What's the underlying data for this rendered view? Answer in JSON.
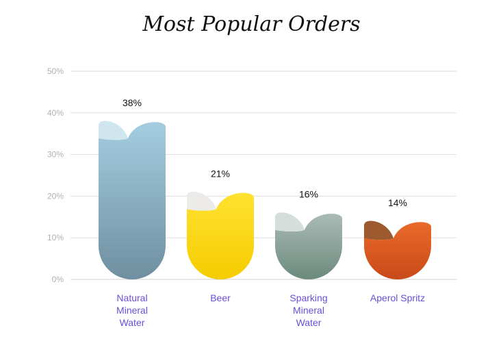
{
  "chart_data": {
    "type": "bar",
    "title": "Most Popular Orders",
    "categories": [
      "Natural Mineral Water",
      "Beer",
      "Sparking Mineral Water",
      "Aperol Spritz"
    ],
    "category_lines": [
      [
        "Natural",
        "Mineral",
        "Water"
      ],
      [
        "Beer"
      ],
      [
        "Sparking",
        "Mineral",
        "Water"
      ],
      [
        "Aperol Spritz"
      ]
    ],
    "values": [
      38,
      21,
      16,
      14
    ],
    "value_labels": [
      "38%",
      "21%",
      "16%",
      "14%"
    ],
    "ylim": [
      0,
      50
    ],
    "y_ticks": [
      "0%",
      "10%",
      "20%",
      "30%",
      "40%",
      "50%"
    ],
    "grid": true,
    "colors": [
      {
        "top": "#a4cde0",
        "bottom": "#6f8fa0",
        "cap": "#cfe6ee"
      },
      {
        "top": "#ffe230",
        "bottom": "#f5cc00",
        "cap": "#ecebea"
      },
      {
        "top": "#aabbb6",
        "bottom": "#6c8a7d",
        "cap": "#d6dedb"
      },
      {
        "top": "#ea6a2a",
        "bottom": "#c94a1a",
        "cap": "#9c5a2e"
      }
    ],
    "label_color": "#6a4fd6"
  }
}
